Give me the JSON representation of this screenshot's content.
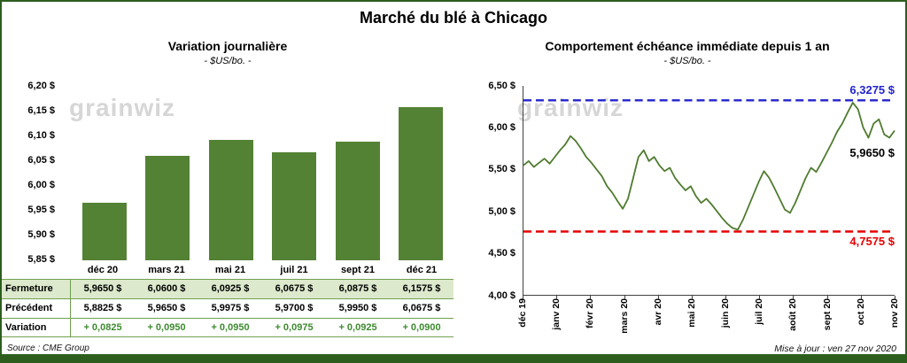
{
  "title": "Marché du blé à Chicago",
  "watermark": "grainwiz",
  "footer": {
    "source": "Source : CME Group",
    "updated": "Mise à jour : ven 27 nov 2020"
  },
  "colors": {
    "bar_green": "#548235",
    "line_green": "#4f7b2f",
    "limit_blue": "#2323cc",
    "limit_red": "#e60000",
    "frame_green": "#2d5e1e",
    "fermeture_row_green": "#dce9cc",
    "variation_green": "#3d8b2f",
    "watermark_gray": "#d6d6d6"
  },
  "chart_data": [
    {
      "type": "bar",
      "title": "Variation journalière",
      "subtitle": "- $US/bo. -",
      "categories": [
        "déc 20",
        "mars 21",
        "mai 21",
        "juil 21",
        "sept 21",
        "déc 21"
      ],
      "values": [
        5.965,
        6.06,
        6.0925,
        6.0675,
        6.0875,
        6.1575
      ],
      "ylim": [
        5.85,
        6.2
      ],
      "ytick_labels": [
        "6,20 $",
        "6,15 $",
        "6,10 $",
        "6,05 $",
        "6,00 $",
        "5,95 $",
        "5,90 $",
        "5,85 $"
      ],
      "legend": "none",
      "grid": false
    },
    {
      "type": "line",
      "title": "Comportement échéance immédiate depuis 1 an",
      "subtitle": "- $US/bo. -",
      "x_labels": [
        "déc 19",
        "janv 20",
        "févr 20",
        "mars 20",
        "avr 20",
        "mai 20",
        "juin 20",
        "juil 20",
        "août 20",
        "sept 20",
        "oct 20",
        "nov 20"
      ],
      "ylim": [
        4.0,
        6.5
      ],
      "ytick_labels": [
        "6,50 $",
        "6,00 $",
        "5,50 $",
        "5,00 $",
        "4,50 $",
        "4,00 $"
      ],
      "values": [
        5.55,
        5.6,
        5.53,
        5.58,
        5.63,
        5.57,
        5.65,
        5.73,
        5.8,
        5.9,
        5.84,
        5.75,
        5.65,
        5.58,
        5.5,
        5.42,
        5.3,
        5.22,
        5.12,
        5.03,
        5.15,
        5.4,
        5.65,
        5.73,
        5.6,
        5.65,
        5.55,
        5.48,
        5.52,
        5.4,
        5.32,
        5.25,
        5.3,
        5.18,
        5.1,
        5.15,
        5.08,
        5.0,
        4.92,
        4.85,
        4.8,
        4.78,
        4.9,
        5.05,
        5.2,
        5.35,
        5.48,
        5.4,
        5.28,
        5.15,
        5.02,
        4.98,
        5.1,
        5.25,
        5.4,
        5.52,
        5.47,
        5.58,
        5.7,
        5.82,
        5.95,
        6.05,
        6.18,
        6.3,
        6.22,
        6.0,
        5.88,
        6.05,
        6.1,
        5.92,
        5.88,
        5.965
      ],
      "hlines": [
        {
          "value": 6.3275,
          "label": "6,3275 $",
          "color": "#2323cc",
          "style": "dashed"
        },
        {
          "value": 4.7575,
          "label": "4,7575 $",
          "color": "#e60000",
          "style": "dashed"
        }
      ],
      "last_label": "5,9650 $",
      "legend": "none",
      "grid": false
    }
  ],
  "table": {
    "columns": [
      "déc 20",
      "mars 21",
      "mai 21",
      "juil 21",
      "sept 21",
      "déc 21"
    ],
    "rows": [
      {
        "label": "Fermeture",
        "values": [
          "5,9650 $",
          "6,0600 $",
          "6,0925 $",
          "6,0675 $",
          "6,0875 $",
          "6,1575 $"
        ]
      },
      {
        "label": "Précédent",
        "values": [
          "5,8825 $",
          "5,9650 $",
          "5,9975 $",
          "5,9700 $",
          "5,9950 $",
          "6,0675 $"
        ]
      },
      {
        "label": "Variation",
        "values": [
          "+ 0,0825",
          "+ 0,0950",
          "+ 0,0950",
          "+ 0,0975",
          "+ 0,0925",
          "+ 0,0900"
        ]
      }
    ]
  }
}
